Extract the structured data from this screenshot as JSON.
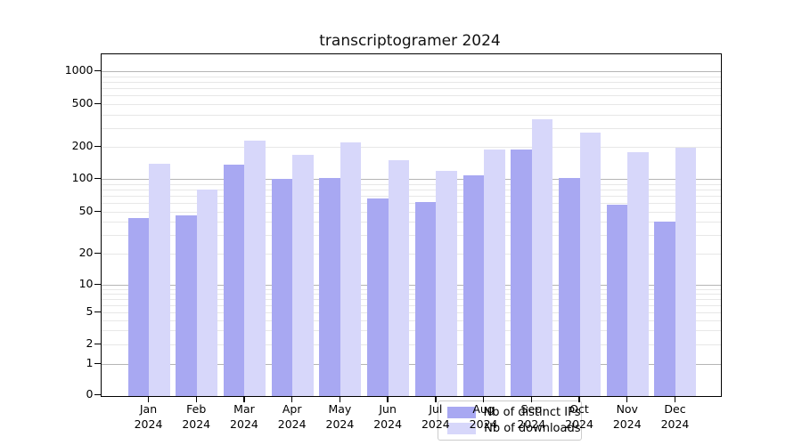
{
  "title": "transcriptogramer 2024",
  "legend": {
    "items": [
      {
        "label": "Nb of distinct IPs",
        "color": "#a8a8f2"
      },
      {
        "label": "Nb of downloads",
        "color": "#d7d7fa"
      }
    ]
  },
  "colors": {
    "bar_distinct_ips": "#a8a8f2",
    "bar_downloads": "#d7d7fa",
    "grid_major": "#b5b5b5",
    "grid_minor": "#e7e7e7",
    "spine": "#000000"
  },
  "chart_data": {
    "type": "bar",
    "title": "transcriptogramer 2024",
    "categories": [
      "Jan",
      "Feb",
      "Mar",
      "Apr",
      "May",
      "Jun",
      "Jul",
      "Aug",
      "Sep",
      "Oct",
      "Nov",
      "Dec"
    ],
    "category_year": "2024",
    "series": [
      {
        "name": "Nb of distinct IPs",
        "color": "#a8a8f2",
        "values": [
          44,
          46,
          135,
          100,
          102,
          66,
          62,
          108,
          190,
          101,
          58,
          40
        ]
      },
      {
        "name": "Nb of downloads",
        "color": "#d7d7fa",
        "values": [
          140,
          80,
          230,
          167,
          218,
          150,
          118,
          188,
          360,
          270,
          178,
          195
        ]
      }
    ],
    "xlabel": "",
    "ylabel": "",
    "yscale": "symlog",
    "ytick_labels": [
      "1000",
      "500",
      "200",
      "100",
      "50",
      "20",
      "10",
      "5",
      "2",
      "1",
      "0"
    ],
    "ytick_values": [
      1000,
      500,
      200,
      100,
      50,
      20,
      10,
      5,
      2,
      1,
      0
    ],
    "ylim": [
      0,
      1400
    ],
    "grid": true,
    "legend_position": "lower center"
  }
}
